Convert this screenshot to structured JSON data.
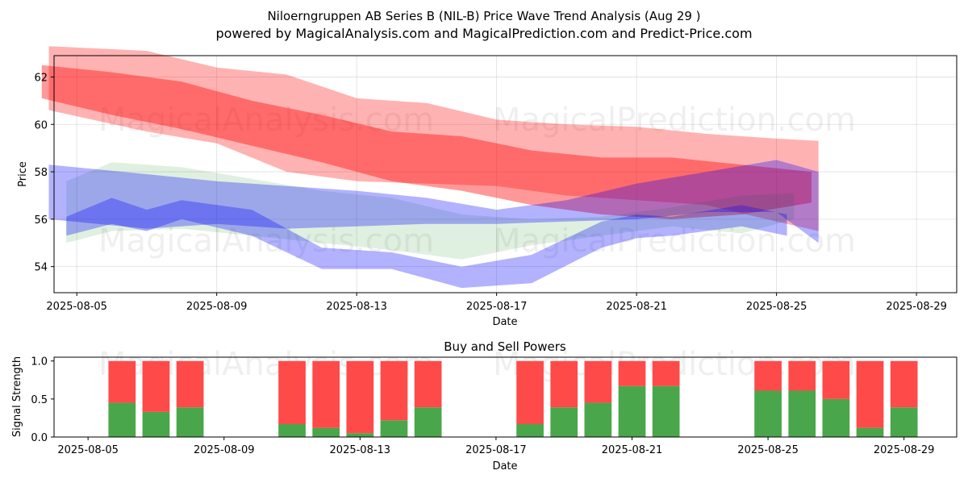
{
  "chart_data": [
    {
      "type": "area",
      "title": "Niloerngruppen AB Series B (NIL-B) Price Wave Trend Analysis (Aug 29 )",
      "subtitle": "powered by MagicalAnalysis.com and MagicalPrediction.com and Predict-Price.com",
      "xlabel": "Date",
      "ylabel": "Price",
      "x_ticks": [
        "2025-08-05",
        "2025-08-09",
        "2025-08-13",
        "2025-08-17",
        "2025-08-21",
        "2025-08-25",
        "2025-08-29"
      ],
      "y_ticks": [
        54,
        56,
        58,
        60,
        62
      ],
      "ylim": [
        52.9,
        62.9
      ],
      "xlim_days": [
        -0.65,
        25.15
      ],
      "grid": true,
      "watermarks": [
        "MagicalAnalysis.com",
        "MagicalPrediction.com"
      ],
      "series": [
        {
          "name": "Red band wide",
          "color": "#ff0000",
          "opacity": 0.3,
          "x": [
            -0.8,
            2,
            4,
            6,
            8,
            10,
            12,
            14,
            16,
            18,
            20,
            21.2
          ],
          "upper": [
            63.3,
            63.1,
            62.4,
            62.1,
            61.1,
            60.9,
            60.2,
            60.0,
            59.9,
            59.6,
            59.4,
            59.3
          ],
          "lower": [
            60.6,
            59.7,
            59.2,
            58.0,
            57.6,
            57.5,
            57.4,
            57.0,
            56.8,
            56.6,
            55.9,
            55.5
          ]
        },
        {
          "name": "Red band core",
          "color": "#ff0000",
          "opacity": 0.4,
          "x": [
            -1.0,
            1,
            3,
            5,
            7,
            9,
            11,
            13,
            15,
            17,
            19,
            21.0
          ],
          "upper": [
            62.5,
            62.2,
            61.8,
            61.0,
            60.4,
            59.7,
            59.5,
            58.9,
            58.6,
            58.6,
            58.3,
            58.0
          ],
          "lower": [
            61.1,
            60.4,
            59.8,
            59.1,
            58.4,
            57.6,
            57.2,
            56.6,
            56.2,
            56.0,
            56.2,
            56.7
          ]
        },
        {
          "name": "Green band",
          "color": "#008000",
          "opacity": 0.12,
          "x": [
            -0.3,
            1,
            3,
            5,
            7,
            9,
            11,
            13,
            15,
            17,
            19,
            20.5
          ],
          "upper": [
            57.6,
            58.4,
            58.2,
            57.7,
            57.2,
            56.9,
            56.2,
            56.0,
            56.1,
            56.5,
            57.0,
            57.1
          ],
          "lower": [
            55.0,
            55.5,
            55.6,
            55.3,
            55.0,
            54.7,
            54.3,
            54.9,
            55.3,
            55.7,
            55.4,
            56.0
          ]
        },
        {
          "name": "Blue band wide",
          "color": "#0000ff",
          "opacity": 0.3,
          "x": [
            -0.8,
            2,
            4,
            6,
            8,
            10,
            12,
            14,
            16,
            18,
            20,
            21.2
          ],
          "upper": [
            58.3,
            57.9,
            57.6,
            57.4,
            57.2,
            56.9,
            56.4,
            56.8,
            57.5,
            58.0,
            58.5,
            58.0
          ],
          "lower": [
            56.0,
            55.6,
            55.8,
            55.6,
            55.7,
            55.8,
            55.8,
            55.9,
            56.0,
            56.3,
            56.3,
            55.0
          ]
        },
        {
          "name": "Blue band lower",
          "color": "#0000ff",
          "opacity": 0.3,
          "x": [
            -0.3,
            1,
            2,
            3,
            5,
            7,
            9,
            11,
            13,
            15,
            16,
            17,
            19,
            20.3
          ],
          "upper": [
            56.1,
            56.9,
            56.4,
            56.8,
            56.4,
            54.8,
            54.6,
            54.0,
            54.5,
            55.9,
            56.2,
            56.1,
            56.6,
            56.2
          ],
          "lower": [
            55.3,
            55.8,
            55.5,
            56.0,
            55.3,
            53.9,
            53.9,
            53.1,
            53.3,
            54.8,
            55.2,
            55.3,
            55.7,
            55.3
          ]
        }
      ]
    },
    {
      "type": "bar",
      "title": "Buy and Sell Powers",
      "xlabel": "Date",
      "ylabel": "Signal Strength",
      "x_ticks": [
        "2025-08-05",
        "2025-08-09",
        "2025-08-13",
        "2025-08-17",
        "2025-08-21",
        "2025-08-25",
        "2025-08-29"
      ],
      "y_ticks": [
        "0.0",
        "0.5",
        "1.0"
      ],
      "ylim": [
        0,
        1.05
      ],
      "xlim_days": [
        -1.0,
        25.55
      ],
      "bar_width_days": 0.8,
      "series": [
        {
          "name": "Buy",
          "color": "#4aa64a",
          "days": [
            1,
            2,
            3,
            6,
            7,
            8,
            9,
            10,
            13,
            14,
            15,
            16,
            17,
            20,
            21,
            22,
            23,
            24
          ],
          "values": [
            0.45,
            0.33,
            0.39,
            0.17,
            0.12,
            0.05,
            0.22,
            0.39,
            0.17,
            0.39,
            0.45,
            0.67,
            0.67,
            0.61,
            0.61,
            0.5,
            0.12,
            0.39
          ]
        },
        {
          "name": "Sell",
          "color": "#ff4a4a",
          "days": [
            1,
            2,
            3,
            6,
            7,
            8,
            9,
            10,
            13,
            14,
            15,
            16,
            17,
            20,
            21,
            22,
            23,
            24
          ],
          "values": [
            0.55,
            0.67,
            0.61,
            0.83,
            0.88,
            0.95,
            0.78,
            0.61,
            0.83,
            0.61,
            0.55,
            0.33,
            0.33,
            0.39,
            0.39,
            0.5,
            0.88,
            0.61
          ]
        }
      ]
    }
  ]
}
